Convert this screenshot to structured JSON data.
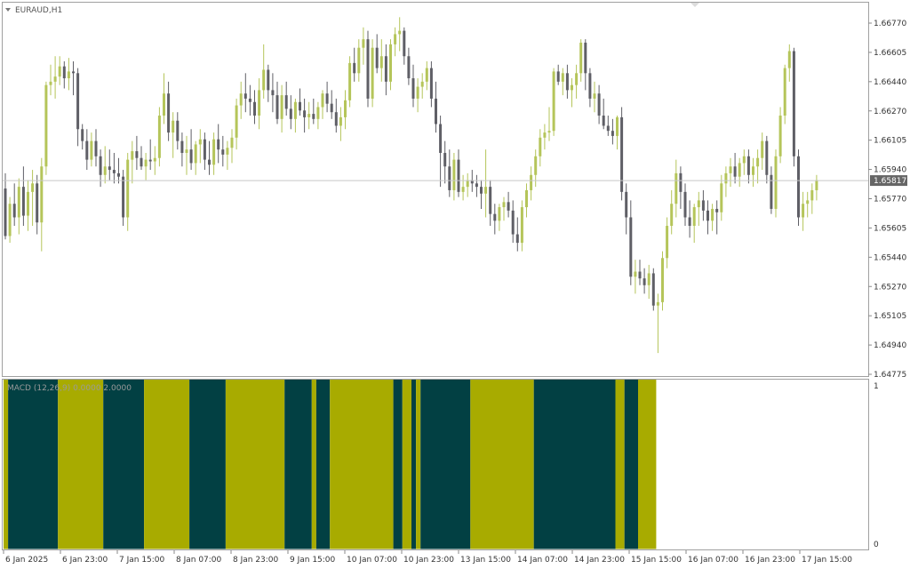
{
  "window": {
    "symbol_title": "EURAUD,H1",
    "menu_icon": "triangle-down-icon"
  },
  "indicator": {
    "label": "MACD (12,26,9) 0.0000 2.0000",
    "scale_top": "1",
    "scale_bottom": "0"
  },
  "current_price": "1.65817",
  "colors": {
    "bull": "#b5c55a",
    "bear": "#5f5f66",
    "macd_pos": "#a8ab00",
    "macd_neg": "#024043",
    "price_tag": "#666666",
    "grid": "#c8c8c8",
    "border": "#a0a0a0"
  },
  "chart_data": {
    "type": "candlestick",
    "price_axis_labels": [
      "1.66770",
      "1.66605",
      "1.66440",
      "1.66270",
      "1.66105",
      "1.65940",
      "1.65770",
      "1.65605",
      "1.65440",
      "1.65270",
      "1.65105",
      "1.64940",
      "1.64775"
    ],
    "time_axis_labels": [
      "6 Jan 2025",
      "6 Jan 23:00",
      "7 Jan 15:00",
      "8 Jan 07:00",
      "8 Jan 23:00",
      "9 Jan 15:00",
      "10 Jan 07:00",
      "10 Jan 23:00",
      "13 Jan 15:00",
      "14 Jan 07:00",
      "14 Jan 23:00",
      "15 Jan 15:00",
      "16 Jan 07:00",
      "16 Jan 23:00",
      "17 Jan 15:00"
    ],
    "ylim": [
      1.6468,
      1.6685
    ],
    "candles": [
      [
        1.6577,
        1.6586,
        1.6547,
        1.6549
      ],
      [
        1.6549,
        1.6572,
        1.6545,
        1.6568
      ],
      [
        1.6568,
        1.658,
        1.6555,
        1.656
      ],
      [
        1.656,
        1.6583,
        1.655,
        1.6578
      ],
      [
        1.6578,
        1.659,
        1.6555,
        1.6561
      ],
      [
        1.6561,
        1.6582,
        1.6552,
        1.6575
      ],
      [
        1.6575,
        1.6588,
        1.6555,
        1.658
      ],
      [
        1.658,
        1.6585,
        1.655,
        1.6557
      ],
      [
        1.6557,
        1.6595,
        1.654,
        1.659
      ],
      [
        1.659,
        1.664,
        1.6585,
        1.6638
      ],
      [
        1.6638,
        1.665,
        1.6632,
        1.664
      ],
      [
        1.664,
        1.6655,
        1.663,
        1.6643
      ],
      [
        1.6643,
        1.6655,
        1.6638,
        1.6649
      ],
      [
        1.6649,
        1.6652,
        1.6636,
        1.6642
      ],
      [
        1.6642,
        1.6654,
        1.6635,
        1.6646
      ],
      [
        1.6646,
        1.6652,
        1.6632,
        1.6645
      ],
      [
        1.6645,
        1.6648,
        1.6602,
        1.6612
      ],
      [
        1.6612,
        1.6615,
        1.66,
        1.6605
      ],
      [
        1.6605,
        1.6612,
        1.6588,
        1.6594
      ],
      [
        1.6594,
        1.661,
        1.659,
        1.6605
      ],
      [
        1.6605,
        1.6612,
        1.659,
        1.6596
      ],
      [
        1.6596,
        1.66,
        1.6578,
        1.6585
      ],
      [
        1.6585,
        1.6602,
        1.658,
        1.659
      ],
      [
        1.659,
        1.66,
        1.6582,
        1.6588
      ],
      [
        1.6588,
        1.6598,
        1.658,
        1.6586
      ],
      [
        1.6586,
        1.6595,
        1.658,
        1.6584
      ],
      [
        1.6584,
        1.6588,
        1.6555,
        1.656
      ],
      [
        1.656,
        1.6598,
        1.6552,
        1.6594
      ],
      [
        1.6594,
        1.6605,
        1.658,
        1.6599
      ],
      [
        1.6599,
        1.6608,
        1.6588,
        1.6595
      ],
      [
        1.6595,
        1.6602,
        1.6588,
        1.659
      ],
      [
        1.659,
        1.6598,
        1.6582,
        1.6594
      ],
      [
        1.6594,
        1.6606,
        1.6588,
        1.6593
      ],
      [
        1.6593,
        1.6602,
        1.6585,
        1.6595
      ],
      [
        1.6595,
        1.6625,
        1.659,
        1.662
      ],
      [
        1.662,
        1.6645,
        1.6615,
        1.6633
      ],
      [
        1.6633,
        1.664,
        1.6605,
        1.661
      ],
      [
        1.661,
        1.6622,
        1.6595,
        1.6617
      ],
      [
        1.6617,
        1.6622,
        1.66,
        1.6605
      ],
      [
        1.6605,
        1.661,
        1.659,
        1.6598
      ],
      [
        1.6598,
        1.6608,
        1.6585,
        1.66
      ],
      [
        1.66,
        1.6612,
        1.6588,
        1.6592
      ],
      [
        1.6592,
        1.6605,
        1.6585,
        1.6603
      ],
      [
        1.6603,
        1.6612,
        1.6592,
        1.6606
      ],
      [
        1.6606,
        1.661,
        1.6588,
        1.6594
      ],
      [
        1.6594,
        1.6605,
        1.6585,
        1.6591
      ],
      [
        1.6591,
        1.661,
        1.6585,
        1.6606
      ],
      [
        1.6606,
        1.6615,
        1.6592,
        1.66
      ],
      [
        1.66,
        1.6608,
        1.659,
        1.6597
      ],
      [
        1.6597,
        1.6605,
        1.6588,
        1.6601
      ],
      [
        1.6601,
        1.6612,
        1.6592,
        1.6607
      ],
      [
        1.6607,
        1.663,
        1.66,
        1.6626
      ],
      [
        1.6626,
        1.664,
        1.6618,
        1.6633
      ],
      [
        1.6633,
        1.6645,
        1.6622,
        1.663
      ],
      [
        1.663,
        1.6638,
        1.662,
        1.6628
      ],
      [
        1.6628,
        1.6635,
        1.6615,
        1.662
      ],
      [
        1.662,
        1.6642,
        1.6612,
        1.6635
      ],
      [
        1.6635,
        1.6662,
        1.663,
        1.6647
      ],
      [
        1.6647,
        1.665,
        1.6628,
        1.6635
      ],
      [
        1.6635,
        1.6645,
        1.6622,
        1.6632
      ],
      [
        1.6632,
        1.664,
        1.6615,
        1.6618
      ],
      [
        1.6618,
        1.6638,
        1.661,
        1.6632
      ],
      [
        1.6632,
        1.664,
        1.662,
        1.6624
      ],
      [
        1.6624,
        1.6632,
        1.6612,
        1.6618
      ],
      [
        1.6618,
        1.663,
        1.661,
        1.6628
      ],
      [
        1.6628,
        1.6636,
        1.662,
        1.6623
      ],
      [
        1.6623,
        1.663,
        1.661,
        1.6619
      ],
      [
        1.6619,
        1.6628,
        1.6612,
        1.6621
      ],
      [
        1.6621,
        1.663,
        1.6615,
        1.6618
      ],
      [
        1.6618,
        1.6628,
        1.6612,
        1.6625
      ],
      [
        1.6625,
        1.6635,
        1.6618,
        1.6633
      ],
      [
        1.6633,
        1.664,
        1.6622,
        1.6627
      ],
      [
        1.6627,
        1.6635,
        1.6618,
        1.6622
      ],
      [
        1.6622,
        1.663,
        1.661,
        1.6614
      ],
      [
        1.6614,
        1.6625,
        1.6605,
        1.6619
      ],
      [
        1.6619,
        1.6635,
        1.6612,
        1.6629
      ],
      [
        1.6629,
        1.6655,
        1.6625,
        1.6651
      ],
      [
        1.6651,
        1.666,
        1.664,
        1.6645
      ],
      [
        1.6645,
        1.6665,
        1.664,
        1.666
      ],
      [
        1.666,
        1.6672,
        1.665,
        1.6665
      ],
      [
        1.6665,
        1.667,
        1.6625,
        1.663
      ],
      [
        1.663,
        1.6665,
        1.6625,
        1.666
      ],
      [
        1.666,
        1.6668,
        1.6645,
        1.6648
      ],
      [
        1.6648,
        1.6665,
        1.664,
        1.6655
      ],
      [
        1.6655,
        1.6662,
        1.6632,
        1.664
      ],
      [
        1.664,
        1.6665,
        1.6635,
        1.6662
      ],
      [
        1.6662,
        1.6672,
        1.6655,
        1.6668
      ],
      [
        1.6668,
        1.6678,
        1.6658,
        1.667
      ],
      [
        1.667,
        1.6672,
        1.665,
        1.6655
      ],
      [
        1.6655,
        1.666,
        1.6638,
        1.6642
      ],
      [
        1.6642,
        1.665,
        1.6625,
        1.663
      ],
      [
        1.663,
        1.6642,
        1.6622,
        1.6637
      ],
      [
        1.6637,
        1.6645,
        1.663,
        1.664
      ],
      [
        1.664,
        1.6652,
        1.6635,
        1.6648
      ],
      [
        1.6648,
        1.6652,
        1.6625,
        1.663
      ],
      [
        1.663,
        1.664,
        1.661,
        1.6615
      ],
      [
        1.6615,
        1.662,
        1.6578,
        1.6598
      ],
      [
        1.6598,
        1.6605,
        1.658,
        1.659
      ],
      [
        1.659,
        1.66,
        1.6572,
        1.6576
      ],
      [
        1.6576,
        1.6598,
        1.657,
        1.6594
      ],
      [
        1.6594,
        1.66,
        1.6572,
        1.6575
      ],
      [
        1.6575,
        1.6585,
        1.657,
        1.6578
      ],
      [
        1.6578,
        1.6586,
        1.6572,
        1.6582
      ],
      [
        1.6582,
        1.6588,
        1.6575,
        1.658
      ],
      [
        1.658,
        1.6585,
        1.6572,
        1.6578
      ],
      [
        1.6578,
        1.6582,
        1.6565,
        1.6574
      ],
      [
        1.6574,
        1.66,
        1.656,
        1.6578
      ],
      [
        1.6578,
        1.6582,
        1.6555,
        1.6562
      ],
      [
        1.6562,
        1.6568,
        1.655,
        1.6558
      ],
      [
        1.6558,
        1.6568,
        1.6552,
        1.6566
      ],
      [
        1.6566,
        1.6572,
        1.6558,
        1.6569
      ],
      [
        1.6569,
        1.6575,
        1.656,
        1.6564
      ],
      [
        1.6564,
        1.657,
        1.6545,
        1.655
      ],
      [
        1.655,
        1.656,
        1.654,
        1.6545
      ],
      [
        1.6545,
        1.657,
        1.654,
        1.6566
      ],
      [
        1.6566,
        1.658,
        1.656,
        1.6576
      ],
      [
        1.6576,
        1.659,
        1.657,
        1.6585
      ],
      [
        1.6585,
        1.66,
        1.6578,
        1.6596
      ],
      [
        1.6596,
        1.6612,
        1.659,
        1.6607
      ],
      [
        1.6607,
        1.6615,
        1.66,
        1.661
      ],
      [
        1.661,
        1.6625,
        1.6605,
        1.6611
      ],
      [
        1.6611,
        1.6648,
        1.6608,
        1.6646
      ],
      [
        1.6646,
        1.665,
        1.6638,
        1.664
      ],
      [
        1.664,
        1.6648,
        1.6632,
        1.6645
      ],
      [
        1.6645,
        1.665,
        1.663,
        1.6635
      ],
      [
        1.6635,
        1.6642,
        1.6625,
        1.6638
      ],
      [
        1.6638,
        1.665,
        1.663,
        1.6645
      ],
      [
        1.6645,
        1.6665,
        1.664,
        1.6663
      ],
      [
        1.6663,
        1.6665,
        1.6635,
        1.6645
      ],
      [
        1.6645,
        1.6648,
        1.6625,
        1.663
      ],
      [
        1.663,
        1.664,
        1.6622,
        1.6633
      ],
      [
        1.6633,
        1.6638,
        1.6615,
        1.662
      ],
      [
        1.662,
        1.663,
        1.6612,
        1.6614
      ],
      [
        1.6614,
        1.662,
        1.6608,
        1.6611
      ],
      [
        1.6611,
        1.6618,
        1.6603,
        1.6608
      ],
      [
        1.6608,
        1.662,
        1.66,
        1.6619
      ],
      [
        1.6619,
        1.6625,
        1.657,
        1.6575
      ],
      [
        1.6575,
        1.658,
        1.655,
        1.656
      ],
      [
        1.656,
        1.657,
        1.652,
        1.6525
      ],
      [
        1.6525,
        1.6535,
        1.6515,
        1.6528
      ],
      [
        1.6528,
        1.6535,
        1.652,
        1.6524
      ],
      [
        1.6524,
        1.653,
        1.6515,
        1.652
      ],
      [
        1.652,
        1.6532,
        1.6512,
        1.6527
      ],
      [
        1.6527,
        1.653,
        1.6505,
        1.6508
      ],
      [
        1.6508,
        1.6515,
        1.648,
        1.651
      ],
      [
        1.651,
        1.654,
        1.6505,
        1.6536
      ],
      [
        1.6536,
        1.656,
        1.653,
        1.6555
      ],
      [
        1.6555,
        1.6576,
        1.655,
        1.6568
      ],
      [
        1.6568,
        1.6594,
        1.656,
        1.6586
      ],
      [
        1.6586,
        1.659,
        1.6565,
        1.6575
      ],
      [
        1.6575,
        1.658,
        1.6555,
        1.656
      ],
      [
        1.656,
        1.657,
        1.6548,
        1.6555
      ],
      [
        1.6555,
        1.6568,
        1.6545,
        1.6566
      ],
      [
        1.6566,
        1.6575,
        1.6555,
        1.657
      ],
      [
        1.657,
        1.6576,
        1.6558,
        1.6564
      ],
      [
        1.6564,
        1.657,
        1.655,
        1.6558
      ],
      [
        1.6558,
        1.6568,
        1.6552,
        1.6565
      ],
      [
        1.6565,
        1.657,
        1.655,
        1.6563
      ],
      [
        1.6563,
        1.6585,
        1.6558,
        1.658
      ],
      [
        1.658,
        1.659,
        1.6572,
        1.6586
      ],
      [
        1.6586,
        1.6595,
        1.6578,
        1.659
      ],
      [
        1.659,
        1.6598,
        1.658,
        1.6584
      ],
      [
        1.6584,
        1.6595,
        1.6578,
        1.6592
      ],
      [
        1.6592,
        1.66,
        1.6585,
        1.6596
      ],
      [
        1.6596,
        1.66,
        1.658,
        1.6585
      ],
      [
        1.6585,
        1.6595,
        1.6578,
        1.659
      ],
      [
        1.659,
        1.66,
        1.658,
        1.6595
      ],
      [
        1.6595,
        1.661,
        1.6588,
        1.6605
      ],
      [
        1.6605,
        1.6608,
        1.658,
        1.6585
      ],
      [
        1.6585,
        1.659,
        1.6562,
        1.6565
      ],
      [
        1.6565,
        1.66,
        1.656,
        1.6596
      ],
      [
        1.6596,
        1.6625,
        1.6592,
        1.662
      ],
      [
        1.662,
        1.665,
        1.6615,
        1.6648
      ],
      [
        1.6648,
        1.6662,
        1.664,
        1.6658
      ],
      [
        1.6658,
        1.666,
        1.659,
        1.6596
      ],
      [
        1.6596,
        1.66,
        1.6555,
        1.656
      ],
      [
        1.656,
        1.6575,
        1.6552,
        1.6568
      ],
      [
        1.6568,
        1.6575,
        1.656,
        1.657
      ],
      [
        1.657,
        1.658,
        1.6562,
        1.6576
      ],
      [
        1.6576,
        1.6585,
        1.657,
        1.6582
      ]
    ],
    "macd_bands": [
      {
        "sign": "pos",
        "bars": 1
      },
      {
        "sign": "neg",
        "bars": 11
      },
      {
        "sign": "pos",
        "bars": 10
      },
      {
        "sign": "neg",
        "bars": 9
      },
      {
        "sign": "pos",
        "bars": 10
      },
      {
        "sign": "neg",
        "bars": 8
      },
      {
        "sign": "pos",
        "bars": 13
      },
      {
        "sign": "neg",
        "bars": 6
      },
      {
        "sign": "pos",
        "bars": 1
      },
      {
        "sign": "neg",
        "bars": 3
      },
      {
        "sign": "pos",
        "bars": 14
      },
      {
        "sign": "neg",
        "bars": 2
      },
      {
        "sign": "pos",
        "bars": 2
      },
      {
        "sign": "neg",
        "bars": 1
      },
      {
        "sign": "pos",
        "bars": 1
      },
      {
        "sign": "neg",
        "bars": 11
      },
      {
        "sign": "pos",
        "bars": 14
      },
      {
        "sign": "neg",
        "bars": 18
      },
      {
        "sign": "pos",
        "bars": 2
      },
      {
        "sign": "neg",
        "bars": 3
      },
      {
        "sign": "pos",
        "bars": 4
      }
    ]
  }
}
